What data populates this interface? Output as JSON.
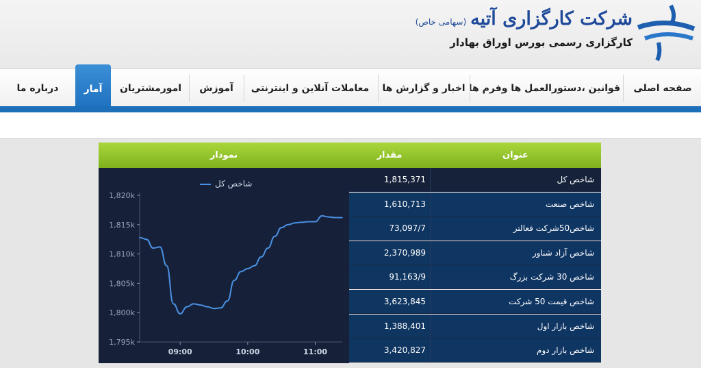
{
  "header": {
    "brand_title": "شرکت کارگزاری آتیه",
    "brand_note": "(سهامی خاص)",
    "brand_subtitle": "کارگزاری رسمی بورس اوراق بهادار",
    "logo_icon": "wave-logo-icon"
  },
  "nav": {
    "items": [
      {
        "label": "صفحه اصلی"
      },
      {
        "label": "قوانین ،دستورالعمل ها وفرم ها"
      },
      {
        "label": "اخبار و گزارش ها"
      },
      {
        "label": "معاملات آنلاین و اینترنتی"
      },
      {
        "label": "آموزش"
      },
      {
        "label": "امورمشتریان"
      },
      {
        "label": "آمار"
      },
      {
        "label": "درباره ما"
      }
    ],
    "active": "آمار"
  },
  "table": {
    "headers": {
      "title": "عنوان",
      "value": "مقدار",
      "chart": "نمودار"
    },
    "rows": [
      {
        "title": "شاخص کل",
        "value": "1,815,371"
      },
      {
        "title": "شاخص صنعت",
        "value": "1,610,713"
      },
      {
        "title": "شاخص50شرکت فعالتر",
        "value": "73,097/7"
      },
      {
        "title": "شاخص آزاد شناور",
        "value": "2,370,989"
      },
      {
        "title": "شاخص 30 شرکت بزرگ",
        "value": "91,163/9"
      },
      {
        "title": "شاخص قیمت 50 شرکت",
        "value": "3,623,845"
      },
      {
        "title": "شاخص بازار اول",
        "value": "1,388,401"
      },
      {
        "title": "شاخص بازار دوم",
        "value": "3,420,827"
      }
    ]
  },
  "chart_data": {
    "type": "line",
    "series": [
      {
        "name": "شاخص کل",
        "x": [
          "08:24",
          "08:30",
          "08:36",
          "08:42",
          "08:48",
          "08:54",
          "09:00",
          "09:06",
          "09:12",
          "09:18",
          "09:24",
          "09:30",
          "09:36",
          "09:42",
          "09:48",
          "09:54",
          "10:00",
          "10:06",
          "10:12",
          "10:18",
          "10:24",
          "10:30",
          "10:36",
          "10:42",
          "10:48",
          "10:54",
          "11:00",
          "11:06",
          "11:12",
          "11:18",
          "11:24"
        ],
        "values": [
          1812800,
          1812500,
          1811000,
          1811200,
          1808000,
          1801500,
          1799800,
          1801000,
          1801500,
          1801300,
          1801000,
          1800700,
          1800800,
          1802000,
          1805500,
          1807000,
          1807500,
          1808000,
          1809500,
          1811000,
          1813000,
          1814500,
          1815000,
          1815300,
          1815400,
          1815500,
          1815500,
          1816500,
          1816300,
          1816200,
          1816200
        ]
      }
    ],
    "x_ticks": [
      "09:00",
      "10:00",
      "11:00"
    ],
    "y_ticks": [
      "1,795k",
      "1,800k",
      "1,805k",
      "1,810k",
      "1,815k",
      "1,820k"
    ],
    "ylim": [
      1795000,
      1820000
    ],
    "legend": "top-center",
    "grid": false,
    "line_color": "#4a90e2",
    "background": "#162139"
  }
}
